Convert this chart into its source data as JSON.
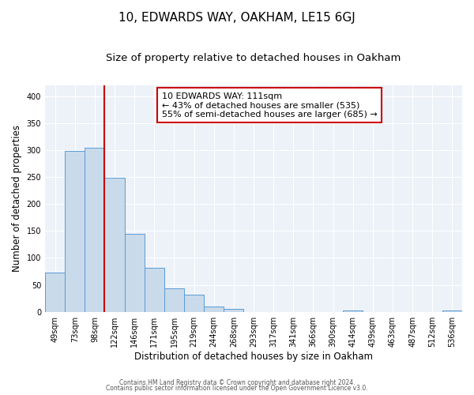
{
  "title": "10, EDWARDS WAY, OAKHAM, LE15 6GJ",
  "subtitle": "Size of property relative to detached houses in Oakham",
  "xlabel": "Distribution of detached houses by size in Oakham",
  "ylabel": "Number of detached properties",
  "bin_labels": [
    "49sqm",
    "73sqm",
    "98sqm",
    "122sqm",
    "146sqm",
    "171sqm",
    "195sqm",
    "219sqm",
    "244sqm",
    "268sqm",
    "293sqm",
    "317sqm",
    "341sqm",
    "366sqm",
    "390sqm",
    "414sqm",
    "439sqm",
    "463sqm",
    "487sqm",
    "512sqm",
    "536sqm"
  ],
  "bar_heights": [
    73,
    298,
    304,
    249,
    144,
    82,
    44,
    32,
    10,
    6,
    0,
    0,
    0,
    0,
    0,
    2,
    0,
    0,
    0,
    0,
    2
  ],
  "bar_color": "#c9daea",
  "bar_edge_color": "#5b9bd5",
  "annotation_title": "10 EDWARDS WAY: 111sqm",
  "annotation_line1": "← 43% of detached houses are smaller (535)",
  "annotation_line2": "55% of semi-detached houses are larger (685) →",
  "annotation_box_facecolor": "#ffffff",
  "annotation_box_edgecolor": "#cc0000",
  "red_line_color": "#cc0000",
  "ylim": [
    0,
    420
  ],
  "yticks": [
    0,
    50,
    100,
    150,
    200,
    250,
    300,
    350,
    400
  ],
  "footer1": "Contains HM Land Registry data © Crown copyright and database right 2024.",
  "footer2": "Contains public sector information licensed under the Open Government Licence v3.0.",
  "fig_facecolor": "#ffffff",
  "plot_facecolor": "#edf2f9",
  "grid_color": "#ffffff",
  "title_fontsize": 11,
  "subtitle_fontsize": 9.5,
  "tick_fontsize": 7,
  "ylabel_fontsize": 8.5,
  "xlabel_fontsize": 8.5,
  "annotation_fontsize": 8,
  "footer_fontsize": 5.5
}
